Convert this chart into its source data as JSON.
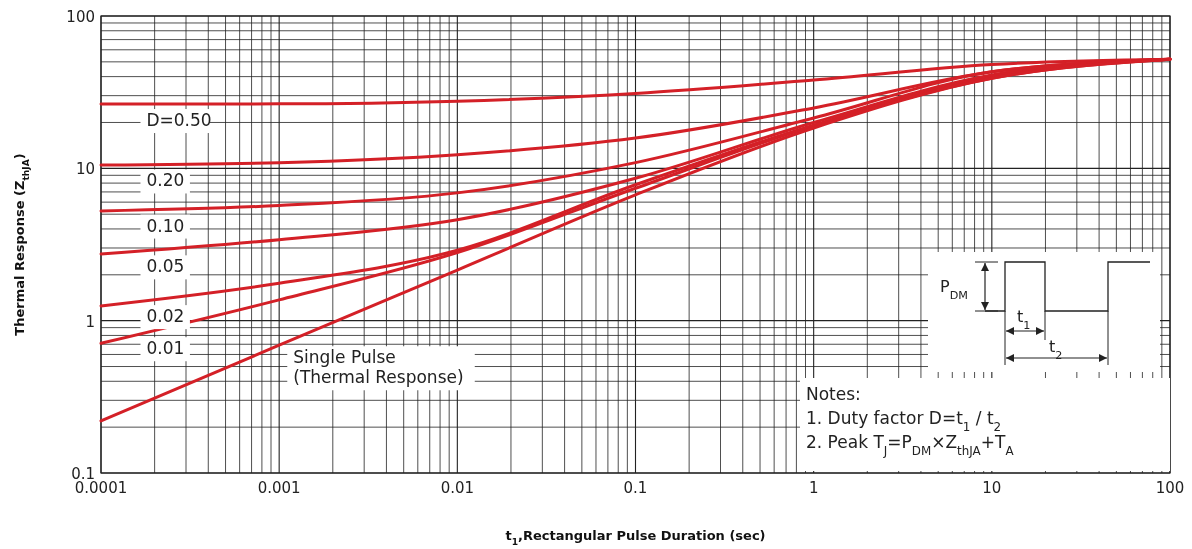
{
  "chart_data": {
    "type": "line",
    "xlabel": "t$_{1}$,Rectangular Pulse Duration (sec)",
    "ylabel": "Thermal Response (Z$_{thJA}$)",
    "log": "xy",
    "grid": true,
    "line_style": "solid",
    "xlim": [
      0.0001,
      100
    ],
    "xticks": [
      0.0001,
      0.001,
      0.01,
      0.1,
      1,
      10,
      100
    ],
    "ylim": [
      0.1,
      100
    ],
    "yticks": [
      0.1,
      1,
      10,
      100
    ],
    "x": [
      0.0001,
      0.001,
      0.01,
      0.1,
      1,
      10,
      100
    ],
    "series": [
      {
        "name": "D=0.50",
        "color": "#d42027",
        "values": [
          26.4,
          26.5,
          27.6,
          31,
          38,
          48,
          52
        ]
      },
      {
        "name": "0.20",
        "color": "#d42027",
        "values": [
          10.5,
          10.9,
          12.3,
          15.8,
          24.9,
          43,
          52
        ]
      },
      {
        "name": "0.10",
        "color": "#d42027",
        "values": [
          5.25,
          5.7,
          6.9,
          10.9,
          21.4,
          43,
          52
        ]
      },
      {
        "name": "0.05",
        "color": "#d42027",
        "values": [
          2.74,
          3.4,
          4.6,
          8.6,
          20,
          41,
          52
        ]
      },
      {
        "name": "0.02",
        "color": "#d42027",
        "values": [
          1.25,
          1.76,
          2.9,
          7.8,
          19.2,
          40,
          52
        ]
      },
      {
        "name": "0.01",
        "color": "#d42027",
        "values": [
          0.71,
          1.37,
          2.8,
          7.4,
          19,
          39,
          52
        ]
      },
      {
        "name": "Single Pulse (Thermal Response)",
        "color": "#d42027",
        "values": [
          0.22,
          0.69,
          2.15,
          6.7,
          18.4,
          39,
          52
        ]
      }
    ],
    "annotations": [
      "P$_{DM}$",
      "t$_{1}$",
      "t$_{2}$",
      "Notes:",
      "1. Duty factor D=t$_{1}$ / t$_{2}$",
      "2. Peak T$_{J}$=P$_{DM}$×Z$_{thJA}$+T$_{A}$"
    ]
  }
}
